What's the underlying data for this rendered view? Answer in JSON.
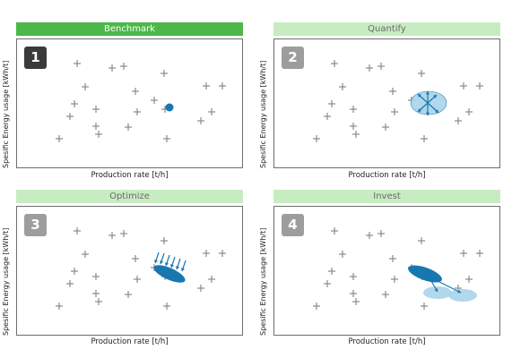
{
  "panels": [
    {
      "id": 1,
      "number": "1",
      "title": "Benchmark",
      "active": true,
      "ylabel": "Spesific Energy usage [kWh/t]",
      "xlabel": "Production rate [t/h]"
    },
    {
      "id": 2,
      "number": "2",
      "title": "Quantify",
      "active": false,
      "ylabel": "Spesific Energy usage [kWh/t]",
      "xlabel": "Production rate [t/h]"
    },
    {
      "id": 3,
      "number": "3",
      "title": "Optimize",
      "active": false,
      "ylabel": "Spesific Energy usage [kWh/t]",
      "xlabel": "Production rate [t/h]"
    },
    {
      "id": 4,
      "number": "4",
      "title": "Invest",
      "active": false,
      "ylabel": "Spesific Energy usage [kWh/t]",
      "xlabel": "Production rate [t/h]"
    }
  ],
  "colors": {
    "active_header": "#4cb84a",
    "inactive_header": "#c8ecc2",
    "marker": "#1877b0",
    "marker_light": "#a9d4ea",
    "plus": "#8a8a8a"
  }
}
